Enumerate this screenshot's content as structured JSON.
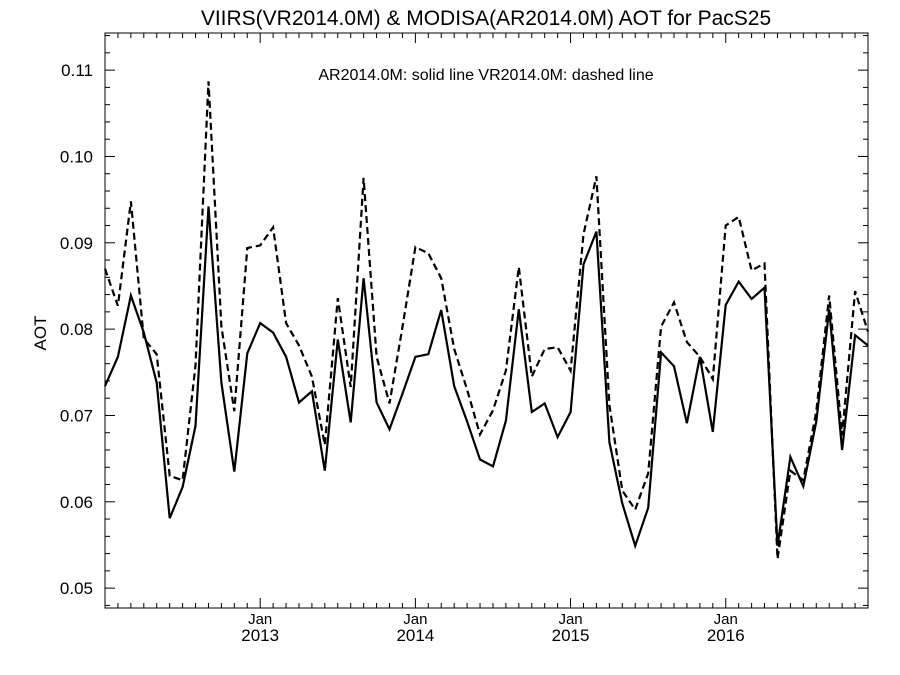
{
  "chart_data": {
    "type": "line",
    "title": "VIIRS(VR2014.0M) & MODISA(AR2014.0M)  AOT for PacS25",
    "ylabel": "AOT",
    "xlabel": "",
    "legend_text": "AR2014.0M: solid line   VR2014.0M: dashed line",
    "ylim": [
      0.0477,
      0.1143
    ],
    "xlim": [
      "2012-01",
      "2016-12"
    ],
    "y_ticks": [
      0.05,
      0.06,
      0.07,
      0.08,
      0.09,
      0.1,
      0.11
    ],
    "y_tick_labels": [
      "0.05",
      "0.06",
      "0.07",
      "0.08",
      "0.09",
      "0.10",
      "0.11"
    ],
    "x_tick_labels": [
      {
        "month": "Jan",
        "year": "2013",
        "x": "2013-01"
      },
      {
        "month": "Jan",
        "year": "2014",
        "x": "2014-01"
      },
      {
        "month": "Jan",
        "year": "2015",
        "x": "2015-01"
      },
      {
        "month": "Jan",
        "year": "2016",
        "x": "2016-01"
      }
    ],
    "grid": false,
    "x": [
      "2012-01",
      "2012-02",
      "2012-03",
      "2012-04",
      "2012-05",
      "2012-06",
      "2012-07",
      "2012-08",
      "2012-09",
      "2012-10",
      "2012-11",
      "2012-12",
      "2013-01",
      "2013-02",
      "2013-03",
      "2013-04",
      "2013-05",
      "2013-06",
      "2013-07",
      "2013-08",
      "2013-09",
      "2013-10",
      "2013-11",
      "2013-12",
      "2014-01",
      "2014-02",
      "2014-03",
      "2014-04",
      "2014-05",
      "2014-06",
      "2014-07",
      "2014-08",
      "2014-09",
      "2014-10",
      "2014-11",
      "2014-12",
      "2015-01",
      "2015-02",
      "2015-03",
      "2015-04",
      "2015-05",
      "2015-06",
      "2015-07",
      "2015-08",
      "2015-09",
      "2015-10",
      "2015-11",
      "2015-12",
      "2016-01",
      "2016-02",
      "2016-03",
      "2016-04",
      "2016-05",
      "2016-06",
      "2016-07",
      "2016-08",
      "2016-09",
      "2016-10",
      "2016-11",
      "2016-12"
    ],
    "series": [
      {
        "name": "AR2014.0M",
        "style": "solid",
        "color": "#000000",
        "values": [
          0.0734,
          0.0768,
          0.0839,
          0.0796,
          0.0738,
          0.0581,
          0.0617,
          0.0688,
          0.0942,
          0.0738,
          0.0635,
          0.0772,
          0.0807,
          0.0796,
          0.0768,
          0.0715,
          0.0728,
          0.0636,
          0.0788,
          0.0692,
          0.0859,
          0.0715,
          0.0684,
          0.0725,
          0.0768,
          0.0771,
          0.0822,
          0.0734,
          0.0693,
          0.0649,
          0.0641,
          0.0694,
          0.0823,
          0.0704,
          0.0714,
          0.0675,
          0.0704,
          0.0875,
          0.0913,
          0.0669,
          0.0598,
          0.0549,
          0.0593,
          0.0773,
          0.0757,
          0.0691,
          0.0768,
          0.0681,
          0.0828,
          0.0855,
          0.0835,
          0.0848,
          0.0549,
          0.0652,
          0.0618,
          0.0693,
          0.0823,
          0.066,
          0.0793,
          0.0781
        ]
      },
      {
        "name": "VR2014.0M",
        "style": "dashed",
        "color": "#000000",
        "values": [
          0.087,
          0.0827,
          0.0948,
          0.0789,
          0.0771,
          0.063,
          0.0625,
          0.0758,
          0.1087,
          0.0803,
          0.0705,
          0.0894,
          0.0897,
          0.0918,
          0.0807,
          0.0781,
          0.0745,
          0.0666,
          0.0836,
          0.0733,
          0.0975,
          0.0768,
          0.0714,
          0.0802,
          0.0895,
          0.0888,
          0.0859,
          0.0777,
          0.073,
          0.0678,
          0.0706,
          0.0752,
          0.0872,
          0.0745,
          0.0777,
          0.0779,
          0.0752,
          0.091,
          0.0977,
          0.0712,
          0.0613,
          0.0591,
          0.0633,
          0.0803,
          0.0831,
          0.0785,
          0.0768,
          0.0742,
          0.092,
          0.093,
          0.0868,
          0.0876,
          0.0534,
          0.0636,
          0.0625,
          0.0705,
          0.0839,
          0.0677,
          0.0844,
          0.0797
        ]
      }
    ]
  }
}
